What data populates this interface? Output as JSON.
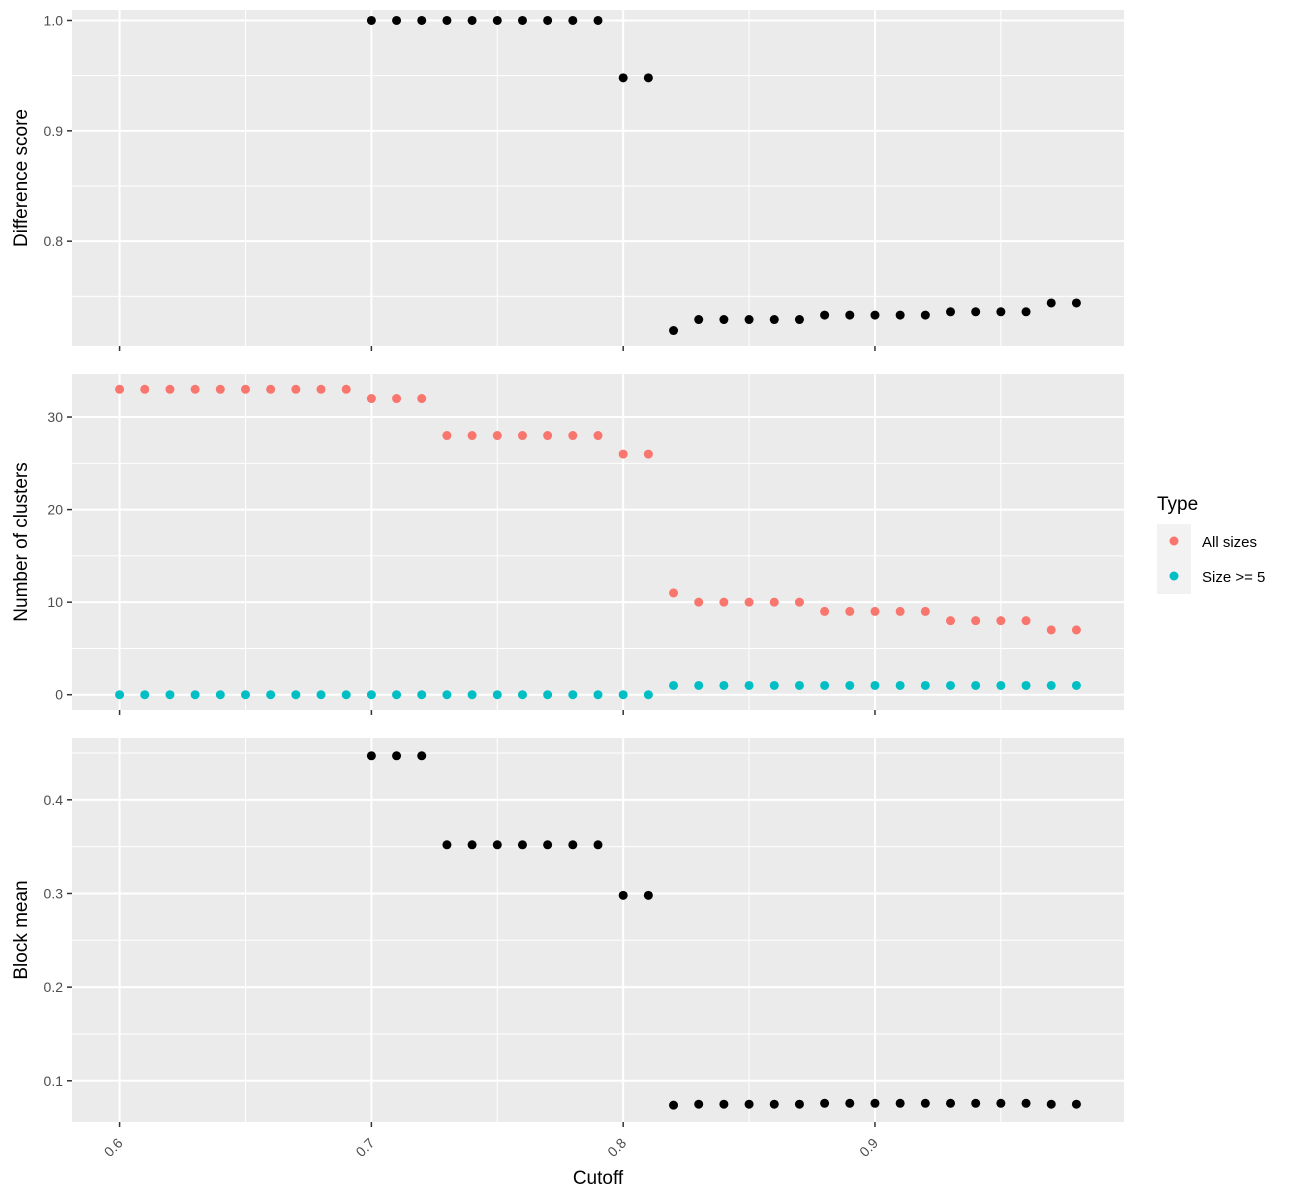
{
  "chart_data": [
    {
      "type": "scatter",
      "ylabel": "Difference score",
      "ylim": [
        0.705,
        1.0095
      ],
      "yticks": [
        0.8,
        0.9,
        1.0
      ],
      "yticklabels": [
        "0.8",
        "0.9",
        "1.0"
      ],
      "series": [
        {
          "x": [
            0.7,
            0.71,
            0.72,
            0.73,
            0.74,
            0.75,
            0.76,
            0.77,
            0.78,
            0.79,
            0.8,
            0.81,
            0.82,
            0.83,
            0.84,
            0.85,
            0.86,
            0.87,
            0.88,
            0.89,
            0.9,
            0.91,
            0.92,
            0.93,
            0.94,
            0.95,
            0.96,
            0.97,
            0.98
          ],
          "y": [
            1.0,
            1.0,
            1.0,
            1.0,
            1.0,
            1.0,
            1.0,
            1.0,
            1.0,
            1.0,
            0.948,
            0.948,
            0.719,
            0.729,
            0.729,
            0.729,
            0.729,
            0.729,
            0.733,
            0.733,
            0.733,
            0.733,
            0.733,
            0.736,
            0.736,
            0.736,
            0.736,
            0.744,
            0.744
          ],
          "color": "#000000"
        }
      ]
    },
    {
      "type": "scatter",
      "ylabel": "Number of clusters",
      "ylim": [
        -1.65,
        34.65
      ],
      "yticks": [
        0,
        10,
        20,
        30
      ],
      "yticklabels": [
        "0",
        "10",
        "20",
        "30"
      ],
      "series": [
        {
          "name": "All sizes",
          "x": [
            0.6,
            0.61,
            0.62,
            0.63,
            0.64,
            0.65,
            0.66,
            0.67,
            0.68,
            0.69,
            0.7,
            0.71,
            0.72,
            0.73,
            0.74,
            0.75,
            0.76,
            0.77,
            0.78,
            0.79,
            0.8,
            0.81,
            0.82,
            0.83,
            0.84,
            0.85,
            0.86,
            0.87,
            0.88,
            0.89,
            0.9,
            0.91,
            0.92,
            0.93,
            0.94,
            0.95,
            0.96,
            0.97,
            0.98
          ],
          "y": [
            33,
            33,
            33,
            33,
            33,
            33,
            33,
            33,
            33,
            33,
            32,
            32,
            32,
            28,
            28,
            28,
            28,
            28,
            28,
            28,
            26,
            26,
            11,
            10,
            10,
            10,
            10,
            10,
            9,
            9,
            9,
            9,
            9,
            8,
            8,
            8,
            8,
            7,
            7
          ],
          "color": "#F8766D"
        },
        {
          "name": "Size >= 5",
          "x": [
            0.6,
            0.61,
            0.62,
            0.63,
            0.64,
            0.65,
            0.66,
            0.67,
            0.68,
            0.69,
            0.7,
            0.71,
            0.72,
            0.73,
            0.74,
            0.75,
            0.76,
            0.77,
            0.78,
            0.79,
            0.8,
            0.81,
            0.82,
            0.83,
            0.84,
            0.85,
            0.86,
            0.87,
            0.88,
            0.89,
            0.9,
            0.91,
            0.92,
            0.93,
            0.94,
            0.95,
            0.96,
            0.97,
            0.98
          ],
          "y": [
            0,
            0,
            0,
            0,
            0,
            0,
            0,
            0,
            0,
            0,
            0,
            0,
            0,
            0,
            0,
            0,
            0,
            0,
            0,
            0,
            0,
            0,
            1,
            1,
            1,
            1,
            1,
            1,
            1,
            1,
            1,
            1,
            1,
            1,
            1,
            1,
            1,
            1,
            1
          ],
          "color": "#00BFC4"
        }
      ]
    },
    {
      "type": "scatter",
      "ylabel": "Block mean",
      "xlabel": "Cutoff",
      "ylim": [
        0.056,
        0.466
      ],
      "yticks": [
        0.1,
        0.2,
        0.3,
        0.4
      ],
      "yticklabels": [
        "0.1",
        "0.2",
        "0.3",
        "0.4"
      ],
      "series": [
        {
          "x": [
            0.7,
            0.71,
            0.72,
            0.73,
            0.74,
            0.75,
            0.76,
            0.77,
            0.78,
            0.79,
            0.8,
            0.81,
            0.82,
            0.83,
            0.84,
            0.85,
            0.86,
            0.87,
            0.88,
            0.89,
            0.9,
            0.91,
            0.92,
            0.93,
            0.94,
            0.95,
            0.96,
            0.97,
            0.98
          ],
          "y": [
            0.447,
            0.447,
            0.447,
            0.352,
            0.352,
            0.352,
            0.352,
            0.352,
            0.352,
            0.352,
            0.298,
            0.298,
            0.074,
            0.075,
            0.075,
            0.075,
            0.075,
            0.075,
            0.076,
            0.076,
            0.076,
            0.076,
            0.076,
            0.076,
            0.076,
            0.076,
            0.076,
            0.075,
            0.075
          ],
          "color": "#000000"
        }
      ]
    }
  ],
  "x_axis": {
    "label": "Cutoff",
    "xlim": [
      0.5811,
      0.9989
    ],
    "ticks": [
      0.6,
      0.7,
      0.8,
      0.9
    ],
    "ticklabels": [
      "0.6",
      "0.7",
      "0.8",
      "0.9"
    ]
  },
  "legend": {
    "title": "Type",
    "placement": "right",
    "items": [
      {
        "label": "All sizes",
        "color": "#F8766D"
      },
      {
        "label": "Size >= 5",
        "color": "#00BFC4"
      }
    ]
  }
}
